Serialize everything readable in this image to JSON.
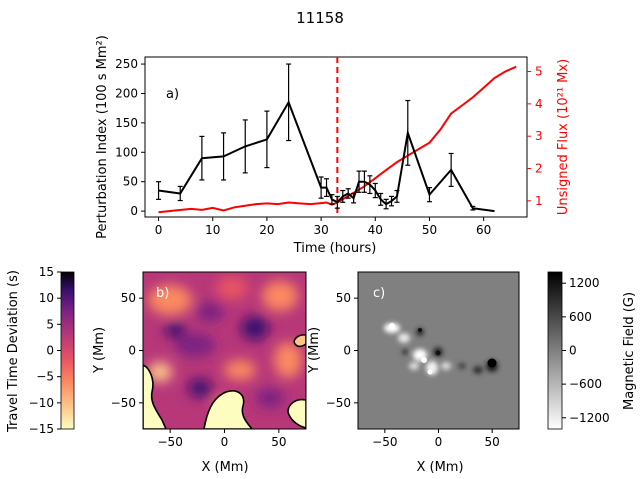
{
  "figure_title": "11158",
  "chart_data": [
    {
      "id": "a",
      "type": "line",
      "panel_label": "a)",
      "xlabel": "Time (hours)",
      "ylabel_left": "Perturbation Index (100 s Mm²)",
      "ylabel_right": "Unsigned Flux (10²¹ Mx)",
      "xlim": [
        -2.5,
        68
      ],
      "ylim_left": [
        -10,
        262
      ],
      "ylim_right": [
        0.5,
        5.45
      ],
      "xticks": [
        0,
        10,
        20,
        30,
        40,
        50,
        60
      ],
      "yticks_left": [
        0,
        50,
        100,
        150,
        200,
        250
      ],
      "yticks_right": [
        1,
        2,
        3,
        4,
        5
      ],
      "marker_line_x": 33,
      "colors": {
        "index": "#000000",
        "flux": "#ff0000",
        "marker": "#ff0000"
      },
      "series": [
        {
          "name": "Perturbation Index",
          "axis": "left",
          "x": [
            0,
            4,
            8,
            12,
            16,
            20,
            24,
            30,
            31,
            32,
            33,
            34,
            35,
            36,
            37,
            38,
            39,
            40,
            41,
            42,
            43,
            44,
            46,
            50,
            54,
            58,
            62
          ],
          "y": [
            35,
            30,
            90,
            93,
            110,
            122,
            185,
            40,
            40,
            20,
            15,
            25,
            30,
            22,
            50,
            50,
            45,
            35,
            20,
            12,
            17,
            25,
            133,
            28,
            70,
            5,
            0
          ],
          "err": [
            15,
            12,
            37,
            40,
            45,
            48,
            65,
            18,
            15,
            8,
            10,
            10,
            8,
            8,
            18,
            18,
            15,
            12,
            10,
            8,
            8,
            10,
            55,
            12,
            28,
            3,
            0
          ]
        },
        {
          "name": "Unsigned Flux",
          "axis": "right",
          "x": [
            0,
            3,
            6,
            8,
            10,
            12,
            14,
            16,
            18,
            20,
            22,
            24,
            26,
            28,
            30,
            31,
            32,
            33,
            34,
            35,
            36,
            38,
            40,
            42,
            44,
            46,
            48,
            50,
            52,
            54,
            56,
            58,
            60,
            62,
            64,
            66
          ],
          "y": [
            0.65,
            0.7,
            0.75,
            0.72,
            0.78,
            0.7,
            0.8,
            0.85,
            0.9,
            0.92,
            0.9,
            0.95,
            0.92,
            0.9,
            0.93,
            0.95,
            0.88,
            0.95,
            1.05,
            1.15,
            1.25,
            1.45,
            1.7,
            1.95,
            2.2,
            2.4,
            2.6,
            2.8,
            3.2,
            3.7,
            3.95,
            4.2,
            4.5,
            4.8,
            5.0,
            5.15
          ]
        }
      ]
    },
    {
      "id": "b",
      "type": "heatmap",
      "panel_label": "b)",
      "xlabel": "X (Mm)",
      "ylabel": "Y (Mm)",
      "xlim": [
        -75,
        75
      ],
      "ylim": [
        -75,
        75
      ],
      "xticks": [
        -50,
        0,
        50
      ],
      "yticks": [
        -50,
        0,
        50
      ],
      "colormap": "magma",
      "colorbar_label": "Travel Time Deviation (s)",
      "colorbar_range": [
        -15,
        15
      ],
      "colorbar_ticks": [
        15,
        10,
        5,
        0,
        -5,
        -10,
        -15
      ]
    },
    {
      "id": "c",
      "type": "heatmap",
      "panel_label": "c)",
      "xlabel": "X (Mm)",
      "ylabel": "Y (Mm)",
      "xlim": [
        -75,
        75
      ],
      "ylim": [
        -75,
        75
      ],
      "xticks": [
        -50,
        0,
        50
      ],
      "yticks": [
        -50,
        0,
        50
      ],
      "colormap": "gray",
      "colorbar_label": "Magnetic Field (G)",
      "colorbar_range": [
        -1400,
        1400
      ],
      "colorbar_ticks": [
        1200,
        600,
        0,
        -600,
        -1200
      ]
    }
  ]
}
